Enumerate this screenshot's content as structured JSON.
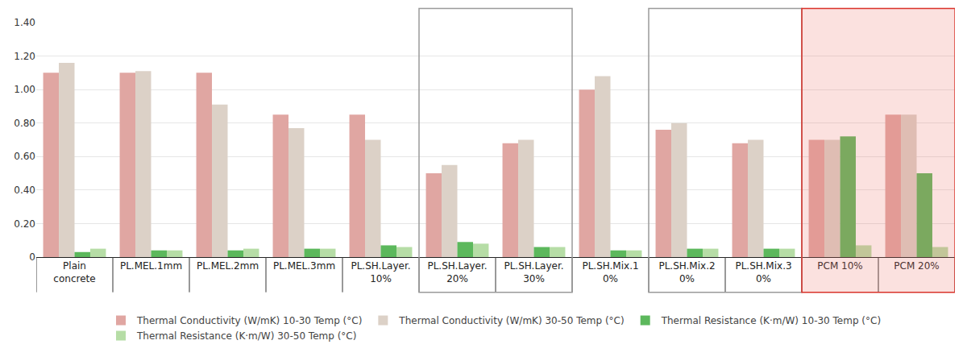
{
  "chart_data": {
    "type": "bar",
    "categories": [
      "Plain concrete",
      "PL.MEL.1mm",
      "PL.MEL.2mm",
      "PL.MEL.3mm",
      "PL.SH.Layer. 10%",
      "PL.SH.Layer. 20%",
      "PL.SH.Layer. 30%",
      "PL.SH.Mix.1 0%",
      "PL.SH.Mix.2 0%",
      "PL.SH.Mix.3 0%",
      "PCM 10%",
      "PCM 20%"
    ],
    "series": [
      {
        "name": "Thermal Conductivity (W/mK) 10-30 Temp (°C)",
        "color": "#e0a6a2",
        "values": [
          1.1,
          1.1,
          1.1,
          0.85,
          0.85,
          0.5,
          0.68,
          1.0,
          0.76,
          0.68,
          0.7,
          0.85
        ]
      },
      {
        "name": "Thermal Conductivity (W/mK) 30-50 Temp (°C)",
        "color": "#dcd1c7",
        "values": [
          1.16,
          1.11,
          0.91,
          0.77,
          0.7,
          0.55,
          0.7,
          1.08,
          0.8,
          0.7,
          0.7,
          0.85
        ]
      },
      {
        "name": "Thermal Resistance (K·m/W) 10-30 Temp (°C)",
        "color": "#5cb85c",
        "values": [
          0.03,
          0.04,
          0.04,
          0.05,
          0.07,
          0.09,
          0.06,
          0.04,
          0.05,
          0.05,
          0.72,
          0.5
        ]
      },
      {
        "name": "Thermal Resistance (K·m/W) 30-50 Temp (°C)",
        "color": "#b6ddA6",
        "values": [
          0.05,
          0.04,
          0.05,
          0.05,
          0.06,
          0.08,
          0.06,
          0.04,
          0.05,
          0.05,
          0.07,
          0.06
        ]
      }
    ],
    "ylim": [
      0,
      1.4
    ],
    "yticks": [
      0,
      {
        "value": 0.2,
        "label": "0.20"
      },
      {
        "value": 0.4,
        "label": "0.40"
      },
      {
        "value": 0.6,
        "label": "0.60"
      },
      {
        "value": 0.8,
        "label": "0.80"
      },
      {
        "value": 1.0,
        "label": "1.00"
      },
      {
        "value": 1.2,
        "label": "1.20"
      },
      {
        "value": 1.4,
        "label": "1.40"
      }
    ],
    "grid": true,
    "legend": "bottom"
  }
}
